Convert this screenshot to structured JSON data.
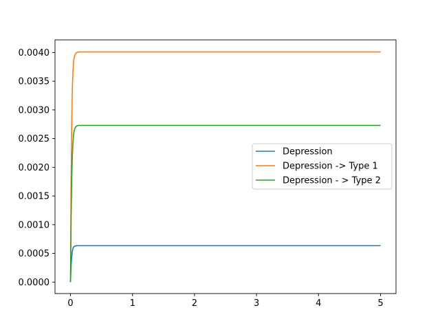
{
  "chart_data": {
    "type": "line",
    "title": "",
    "xlabel": "",
    "ylabel": "",
    "xlim": [
      -0.25,
      5.25
    ],
    "ylim": [
      -0.0002,
      0.00422
    ],
    "x_ticks": [
      0,
      1,
      2,
      3,
      4,
      5
    ],
    "x_tick_labels": [
      "0",
      "1",
      "2",
      "3",
      "4",
      "5"
    ],
    "y_ticks": [
      0,
      0.0005,
      0.001,
      0.0015,
      0.002,
      0.0025,
      0.003,
      0.0035,
      0.004
    ],
    "y_tick_labels": [
      "0.0000",
      "0.0005",
      "0.0010",
      "0.0015",
      "0.0020",
      "0.0025",
      "0.0030",
      "0.0035",
      "0.0040"
    ],
    "grid": false,
    "legend_position": "center-right",
    "series": [
      {
        "name": "Depression",
        "color": "#1f77b4",
        "x": [
          0,
          0.01,
          0.02,
          0.03,
          0.04,
          0.05,
          0.06,
          0.08,
          0.1,
          0.13,
          0.16,
          0.2,
          0.3,
          0.5,
          1,
          2,
          3,
          4,
          5
        ],
        "y": [
          0,
          0.00029,
          0.00045,
          0.00054,
          0.00059,
          0.00061,
          0.000622,
          0.00063,
          0.000633,
          0.000634,
          0.000634,
          0.000634,
          0.000634,
          0.000634,
          0.000634,
          0.000634,
          0.000634,
          0.000634,
          0.000634
        ]
      },
      {
        "name": "Depression -> Type 1",
        "color": "#ff7f0e",
        "x": [
          0,
          0.01,
          0.02,
          0.03,
          0.04,
          0.05,
          0.06,
          0.08,
          0.1,
          0.13,
          0.16,
          0.2,
          0.3,
          0.5,
          1,
          2,
          3,
          4,
          5
        ],
        "y": [
          0,
          0.0018,
          0.0028,
          0.0034,
          0.00368,
          0.00384,
          0.00392,
          0.00398,
          0.004,
          0.00401,
          0.00401,
          0.00401,
          0.00401,
          0.00401,
          0.00401,
          0.00401,
          0.00401,
          0.00401,
          0.00401
        ]
      },
      {
        "name": "Depression - > Type 2",
        "color": "#2ca02c",
        "x": [
          0,
          0.01,
          0.02,
          0.03,
          0.04,
          0.05,
          0.06,
          0.08,
          0.1,
          0.13,
          0.16,
          0.2,
          0.3,
          0.5,
          1,
          2,
          3,
          4,
          5
        ],
        "y": [
          0,
          0.00115,
          0.0018,
          0.0022,
          0.00244,
          0.00257,
          0.00264,
          0.0027,
          0.00272,
          0.00273,
          0.00273,
          0.00273,
          0.00273,
          0.00273,
          0.00273,
          0.00273,
          0.00273,
          0.00273,
          0.00273
        ]
      }
    ]
  }
}
